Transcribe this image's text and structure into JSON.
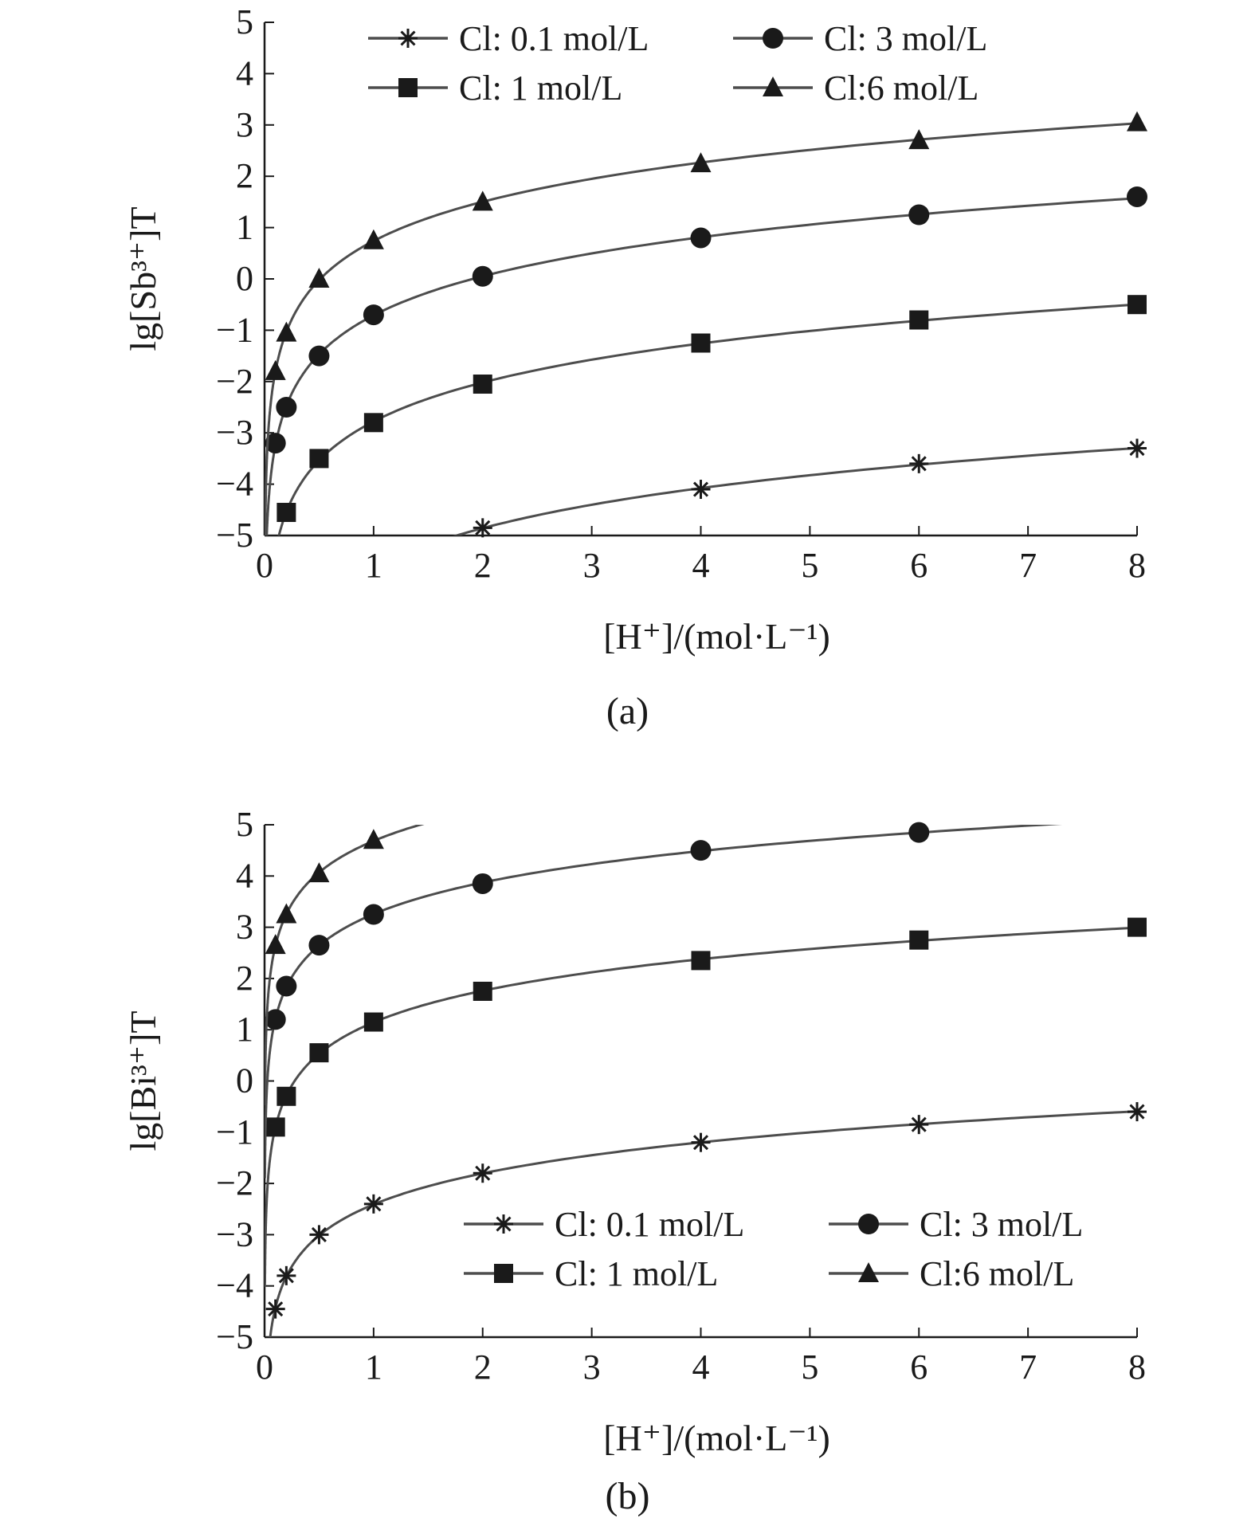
{
  "chart_data": [
    {
      "type": "line",
      "caption": "(a)",
      "xlabel": "[H⁺]/(mol·L⁻¹)",
      "ylabel": "lg[Sb³⁺]T",
      "xlim": [
        0,
        8
      ],
      "ylim": [
        -5,
        5
      ],
      "xticks": [
        0,
        1,
        2,
        3,
        4,
        5,
        6,
        7,
        8
      ],
      "yticks": [
        5,
        4,
        3,
        2,
        1,
        0,
        -1,
        -2,
        -3,
        -4,
        -5
      ],
      "grid": false,
      "legend_position": "top",
      "series": [
        {
          "name": "Cl: 0.1 mol/L",
          "marker": "asterisk",
          "x": [
            2,
            4,
            6,
            8
          ],
          "y": [
            -4.85,
            -4.1,
            -3.6,
            -3.3
          ]
        },
        {
          "name": "Cl: 1 mol/L",
          "marker": "square",
          "x": [
            0.2,
            0.5,
            1,
            2,
            4,
            6,
            8
          ],
          "y": [
            -4.55,
            -3.5,
            -2.8,
            -2.05,
            -1.25,
            -0.8,
            -0.5
          ]
        },
        {
          "name": "Cl: 3 mol/L",
          "marker": "circle",
          "x": [
            0.1,
            0.2,
            0.5,
            1,
            2,
            4,
            6,
            8
          ],
          "y": [
            -3.2,
            -2.5,
            -1.5,
            -0.7,
            0.05,
            0.8,
            1.25,
            1.6
          ]
        },
        {
          "name": "Cl:6 mol/L",
          "marker": "triangle",
          "x": [
            0.1,
            0.2,
            0.5,
            1,
            2,
            4,
            6,
            8
          ],
          "y": [
            -1.8,
            -1.05,
            0.0,
            0.75,
            1.5,
            2.25,
            2.7,
            3.05
          ]
        }
      ]
    },
    {
      "type": "line",
      "caption": "(b)",
      "xlabel": "[H⁺]/(mol·L⁻¹)",
      "ylabel": "lg[Bi³⁺]T",
      "xlim": [
        0,
        8
      ],
      "ylim": [
        -5,
        5
      ],
      "xticks": [
        0,
        1,
        2,
        3,
        4,
        5,
        6,
        7,
        8
      ],
      "yticks": [
        5,
        4,
        3,
        2,
        1,
        0,
        -1,
        -2,
        -3,
        -4,
        -5
      ],
      "grid": false,
      "legend_position": "bottom-right",
      "series": [
        {
          "name": "Cl: 0.1 mol/L",
          "marker": "asterisk",
          "x": [
            0.1,
            0.2,
            0.5,
            1,
            2,
            4,
            6,
            8
          ],
          "y": [
            -4.45,
            -3.8,
            -3.0,
            -2.4,
            -1.8,
            -1.2,
            -0.85,
            -0.6
          ]
        },
        {
          "name": "Cl: 1 mol/L",
          "marker": "square",
          "x": [
            0.1,
            0.2,
            0.5,
            1,
            2,
            4,
            6,
            8
          ],
          "y": [
            -0.9,
            -0.3,
            0.55,
            1.15,
            1.75,
            2.35,
            2.75,
            3.0
          ]
        },
        {
          "name": "Cl: 3 mol/L",
          "marker": "circle",
          "x": [
            0.1,
            0.2,
            0.5,
            1,
            2,
            4,
            6
          ],
          "y": [
            1.2,
            1.85,
            2.65,
            3.25,
            3.85,
            4.5,
            4.85
          ]
        },
        {
          "name": "Cl:6 mol/L",
          "marker": "triangle",
          "x": [
            0.1,
            0.2,
            0.5,
            1
          ],
          "y": [
            2.65,
            3.25,
            4.05,
            4.7
          ]
        }
      ]
    }
  ],
  "colors": {
    "line": "#4d4d4d",
    "marker": "#1a1a1a",
    "axis": "#1a1a1a"
  }
}
